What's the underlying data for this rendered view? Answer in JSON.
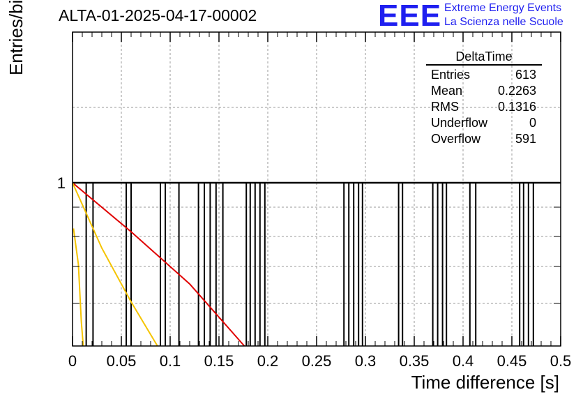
{
  "header": {
    "title": "ALTA-01-2025-04-17-00002"
  },
  "logo": {
    "mark": "EEE",
    "line1": "Extreme Energy Events",
    "line2": "La Scienza nelle Scuole",
    "color": "#1f1ff0"
  },
  "stats": {
    "title": "DeltaTime",
    "rows": [
      {
        "label": "Entries",
        "value": "613"
      },
      {
        "label": "Mean",
        "value": "0.2263"
      },
      {
        "label": "RMS",
        "value": "0.1316"
      },
      {
        "label": "Underflow",
        "value": "0"
      },
      {
        "label": "Overflow",
        "value": "591"
      }
    ]
  },
  "chart_data": {
    "type": "bar",
    "title": "ALTA-01-2025-04-17-00002",
    "xlabel": "Time difference [s]",
    "ylabel": "Entries/bin",
    "xlim": [
      0,
      0.5
    ],
    "y_scale": "log",
    "y_tick_labels": [
      "1"
    ],
    "x_tick_labels": [
      "0",
      "0.05",
      "0.1",
      "0.15",
      "0.2",
      "0.25",
      "0.3",
      "0.35",
      "0.4",
      "0.45",
      "0.5"
    ],
    "x_ticks": [
      0,
      0.05,
      0.1,
      0.15,
      0.2,
      0.25,
      0.3,
      0.35,
      0.4,
      0.45,
      0.5
    ],
    "grid": true,
    "bin_value": 1,
    "bin_lines_x": [
      0.014,
      0.021,
      0.055,
      0.06,
      0.09,
      0.095,
      0.109,
      0.129,
      0.135,
      0.141,
      0.147,
      0.154,
      0.178,
      0.182,
      0.187,
      0.192,
      0.197,
      0.278,
      0.283,
      0.288,
      0.293,
      0.297,
      0.334,
      0.338,
      0.369,
      0.374,
      0.379,
      0.383,
      0.407,
      0.413,
      0.458,
      0.462,
      0.467,
      0.472
    ],
    "fits": [
      {
        "color": "#e00000",
        "points": [
          [
            0.0,
            1.0
          ],
          [
            0.06,
            0.7
          ],
          [
            0.12,
            0.38
          ],
          [
            0.176,
            0.0
          ]
        ]
      },
      {
        "color": "#f5c400",
        "points": [
          [
            0.0,
            1.0
          ],
          [
            0.03,
            0.6
          ],
          [
            0.06,
            0.27
          ],
          [
            0.087,
            0.0
          ]
        ]
      },
      {
        "color": "#f5c400",
        "points": [
          [
            0.001,
            0.72
          ],
          [
            0.006,
            0.5
          ],
          [
            0.009,
            0.15
          ],
          [
            0.011,
            0.0
          ]
        ]
      }
    ],
    "colors": {
      "frame": "#000000",
      "grid": "#999999",
      "bars": "#000000"
    }
  }
}
